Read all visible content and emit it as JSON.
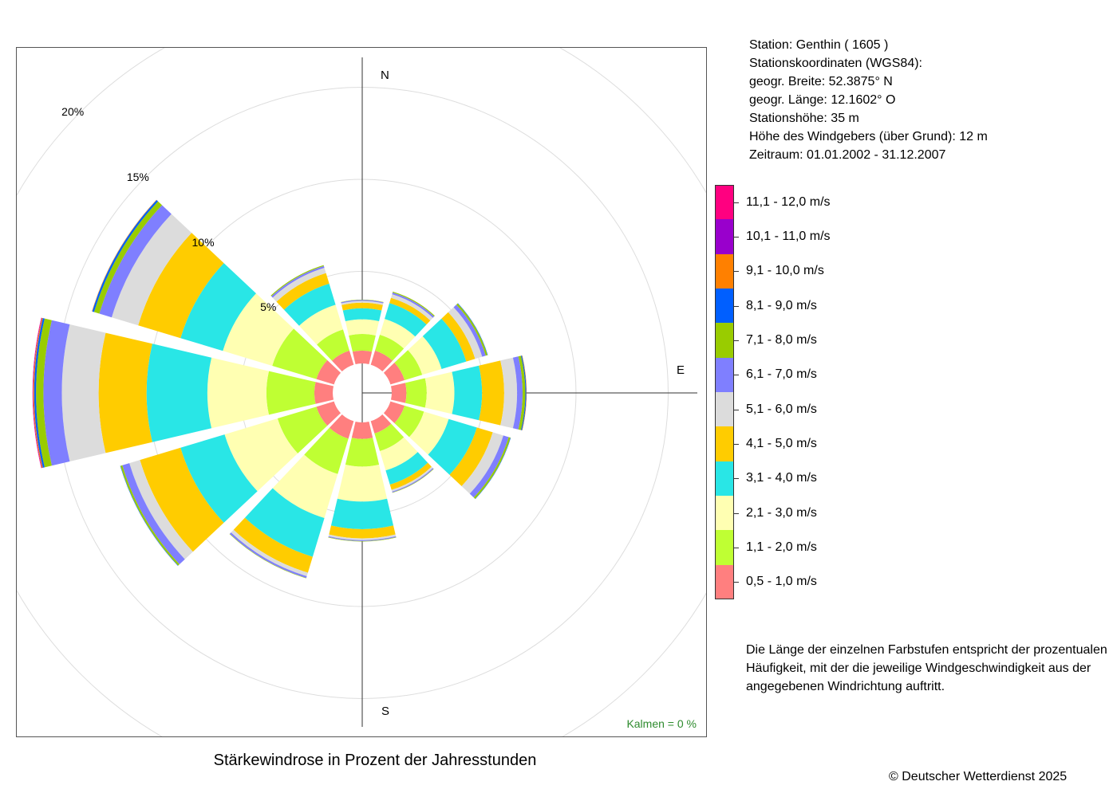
{
  "station_info": {
    "station": "Station:  Genthin  ( 1605 )",
    "coords_heading": "Stationskoordinaten (WGS84):",
    "latitude": "geogr. Breite: 52.3875° N",
    "longitude": "geogr. Länge: 12.1602° O",
    "elevation": "Stationshöhe: 35 m",
    "anemometer_height": "Höhe des Windgebers (über Grund): 12 m",
    "period": "Zeitraum: 01.01.2002 - 31.12.2007"
  },
  "note": {
    "line1": "Die Länge der einzelnen Farbstufen entspricht der prozentualen",
    "line2": "Häufigkeit, mit der die jeweilige Windgeschwindigkeit aus der",
    "line3": "angegebenen Windrichtung auftritt."
  },
  "title": "Stärkewindrose in Prozent der Jahresstunden",
  "copyright": "© Deutscher Wetterdienst  2025",
  "kalmen": "Kalmen  =  0 %",
  "compass": {
    "n": "N",
    "e": "E",
    "s": "S"
  },
  "chart_data": {
    "type": "polar-stacked-bar",
    "title": "Stärkewindrose in Prozent der Jahresstunden",
    "radial_unit": "%",
    "rings": [
      5,
      10,
      15,
      20
    ],
    "ring_labels": [
      "5%",
      "10%",
      "15%",
      "20%"
    ],
    "inner_hole_percent": 1.6,
    "calm_percent": 0,
    "speed_classes": [
      {
        "label": "0,5 - 1,0 m/s",
        "color": "#ff7f7f"
      },
      {
        "label": "1,1 - 2,0 m/s",
        "color": "#bfff33"
      },
      {
        "label": "2,1 - 3,0 m/s",
        "color": "#ffffb2"
      },
      {
        "label": "3,1 - 4,0 m/s",
        "color": "#29e6e6"
      },
      {
        "label": "4,1 - 5,0 m/s",
        "color": "#ffcc00"
      },
      {
        "label": "5,1 - 6,0 m/s",
        "color": "#dcdcdc"
      },
      {
        "label": "6,1 - 7,0 m/s",
        "color": "#7f7fff"
      },
      {
        "label": "7,1 - 8,0 m/s",
        "color": "#99cc00"
      },
      {
        "label": "8,1 - 9,0 m/s",
        "color": "#005fff"
      },
      {
        "label": "9,1 - 10,0 m/s",
        "color": "#ff8000"
      },
      {
        "label": "10,1 - 11,0 m/s",
        "color": "#9900cc"
      },
      {
        "label": "11,1 - 12,0 m/s",
        "color": "#ff0080"
      }
    ],
    "directions_deg": [
      0,
      30,
      60,
      90,
      120,
      150,
      180,
      210,
      240,
      270,
      300,
      330
    ],
    "values": [
      [
        0.7,
        0.9,
        0.8,
        0.6,
        0.3,
        0.1,
        0.05,
        0.02,
        0,
        0,
        0,
        0
      ],
      [
        0.8,
        0.9,
        0.9,
        0.9,
        0.3,
        0.2,
        0.1,
        0.05,
        0,
        0,
        0,
        0
      ],
      [
        0.8,
        1.0,
        1.1,
        1.4,
        0.5,
        0.4,
        0.2,
        0.1,
        0.02,
        0,
        0,
        0
      ],
      [
        0.8,
        1.1,
        1.5,
        1.5,
        1.2,
        0.7,
        0.3,
        0.15,
        0.05,
        0.02,
        0,
        0
      ],
      [
        0.8,
        1.1,
        1.4,
        1.6,
        0.9,
        0.6,
        0.3,
        0.1,
        0.02,
        0,
        0,
        0
      ],
      [
        0.7,
        1.0,
        1.1,
        0.8,
        0.3,
        0.1,
        0.05,
        0.02,
        0,
        0,
        0,
        0
      ],
      [
        0.9,
        1.5,
        1.9,
        1.5,
        0.5,
        0.1,
        0.05,
        0.02,
        0,
        0,
        0,
        0
      ],
      [
        1.0,
        2.0,
        2.5,
        2.2,
        0.9,
        0.2,
        0.1,
        0.02,
        0,
        0,
        0,
        0
      ],
      [
        1.0,
        2.2,
        3.0,
        2.5,
        2.3,
        0.6,
        0.4,
        0.1,
        0.02,
        0,
        0,
        0
      ],
      [
        1.0,
        2.6,
        3.2,
        3.3,
        2.6,
        2.0,
        1.0,
        0.4,
        0.1,
        0.05,
        0.02,
        0.02
      ],
      [
        1.0,
        2.5,
        2.8,
        2.4,
        2.4,
        1.5,
        0.7,
        0.3,
        0.1,
        0.02,
        0,
        0
      ],
      [
        0.8,
        1.2,
        1.4,
        1.2,
        0.6,
        0.3,
        0.1,
        0.05,
        0,
        0,
        0,
        0
      ]
    ]
  }
}
